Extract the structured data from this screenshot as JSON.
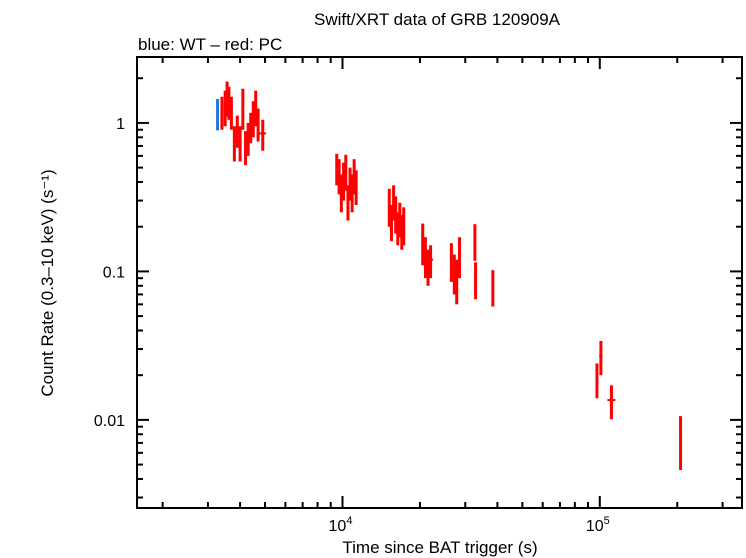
{
  "chart_data": {
    "type": "scatter",
    "title": "Swift/XRT data of GRB 120909A",
    "subtitle": "blue: WT – red: PC",
    "xlabel": "Time since BAT trigger (s)",
    "ylabel": "Count Rate (0.3–10 keV) (s⁻¹)",
    "xscale": "log",
    "yscale": "log",
    "xlim": [
      1590,
      357000
    ],
    "ylim": [
      0.00255,
      2.78
    ],
    "x_ticklabels": [
      {
        "base": "10",
        "exp": "4",
        "value": 10000
      },
      {
        "base": "10",
        "exp": "5",
        "value": 100000
      }
    ],
    "y_ticklabels": [
      {
        "label": "1",
        "value": 1
      },
      {
        "label": "0.1",
        "value": 0.1
      },
      {
        "label": "0.01",
        "value": 0.01
      }
    ],
    "grid": false,
    "legend": "none",
    "series": [
      {
        "name": "WT",
        "color": "#1f77d4",
        "points": [
          [
            3270,
            1.17,
            20,
            0.28
          ]
        ]
      },
      {
        "name": "PC",
        "color": "#ff0000",
        "points": [
          [
            3400,
            1.2,
            40,
            0.3
          ],
          [
            3500,
            1.3,
            40,
            0.35
          ],
          [
            3560,
            1.5,
            30,
            0.4
          ],
          [
            3620,
            1.4,
            40,
            0.35
          ],
          [
            3700,
            1.2,
            40,
            0.3
          ],
          [
            3800,
            0.75,
            50,
            0.2
          ],
          [
            3900,
            0.9,
            50,
            0.22
          ],
          [
            4000,
            0.75,
            50,
            0.2
          ],
          [
            4100,
            1.3,
            50,
            0.4
          ],
          [
            4200,
            0.7,
            50,
            0.18
          ],
          [
            4300,
            0.8,
            50,
            0.2
          ],
          [
            4400,
            0.95,
            50,
            0.22
          ],
          [
            4500,
            1.1,
            50,
            0.3
          ],
          [
            4600,
            1.3,
            50,
            0.35
          ],
          [
            4700,
            1.0,
            50,
            0.25
          ],
          [
            4900,
            0.85,
            150,
            0.2
          ],
          [
            9500,
            0.5,
            100,
            0.12
          ],
          [
            9700,
            0.45,
            100,
            0.12
          ],
          [
            9900,
            0.35,
            100,
            0.1
          ],
          [
            10100,
            0.42,
            100,
            0.12
          ],
          [
            10300,
            0.48,
            100,
            0.13
          ],
          [
            10500,
            0.3,
            100,
            0.08
          ],
          [
            10700,
            0.4,
            100,
            0.1
          ],
          [
            10900,
            0.35,
            100,
            0.1
          ],
          [
            11100,
            0.45,
            100,
            0.12
          ],
          [
            11300,
            0.38,
            100,
            0.1
          ],
          [
            15200,
            0.28,
            150,
            0.08
          ],
          [
            15500,
            0.22,
            150,
            0.06
          ],
          [
            15800,
            0.3,
            150,
            0.08
          ],
          [
            16100,
            0.25,
            150,
            0.07
          ],
          [
            16400,
            0.2,
            150,
            0.05
          ],
          [
            16700,
            0.23,
            150,
            0.06
          ],
          [
            17000,
            0.19,
            150,
            0.05
          ],
          [
            17300,
            0.21,
            150,
            0.06
          ],
          [
            20500,
            0.16,
            200,
            0.05
          ],
          [
            21000,
            0.13,
            200,
            0.04
          ],
          [
            21500,
            0.11,
            200,
            0.03
          ],
          [
            22000,
            0.12,
            500,
            0.03
          ],
          [
            26500,
            0.12,
            300,
            0.035
          ],
          [
            27200,
            0.1,
            300,
            0.03
          ],
          [
            27800,
            0.09,
            300,
            0.03
          ],
          [
            28500,
            0.13,
            300,
            0.04
          ],
          [
            32700,
            0.163,
            150,
            0.045
          ],
          [
            32900,
            0.09,
            150,
            0.025
          ],
          [
            38400,
            0.08,
            300,
            0.022
          ],
          [
            97500,
            0.019,
            1000,
            0.005
          ],
          [
            101000,
            0.027,
            1500,
            0.007
          ],
          [
            111000,
            0.0136,
            4000,
            0.0035
          ],
          [
            206000,
            0.0076,
            1500,
            0.003
          ]
        ]
      }
    ]
  }
}
